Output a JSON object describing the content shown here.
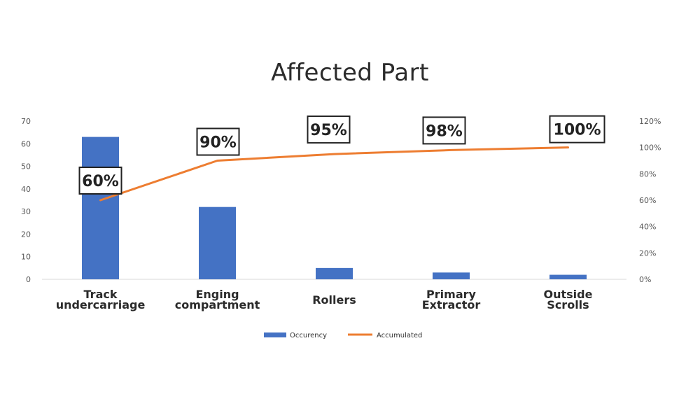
{
  "chart_data": {
    "type": "bar",
    "title": "Affected Part",
    "categories": [
      [
        "Track",
        "undercarriage"
      ],
      [
        "Enging",
        "compartment"
      ],
      [
        "Rollers"
      ],
      [
        "Primary",
        "Extractor"
      ],
      [
        "Outside",
        "Scrolls"
      ]
    ],
    "series": [
      {
        "name": "Occurency",
        "type": "bar",
        "axis": "left",
        "color": "#4472C4",
        "values": [
          63,
          32,
          5,
          3,
          2
        ]
      },
      {
        "name": "Accumulated",
        "type": "line",
        "axis": "right",
        "color": "#ED7D31",
        "values": [
          60,
          90,
          95,
          98,
          100
        ],
        "data_labels": [
          "60%",
          "90%",
          "95%",
          "98%",
          "100%"
        ]
      }
    ],
    "y_left": {
      "min": 0,
      "max": 70,
      "ticks": [
        "0",
        "10",
        "20",
        "30",
        "40",
        "50",
        "60",
        "70"
      ]
    },
    "y_right": {
      "min": 0,
      "max": 120,
      "ticks": [
        "0%",
        "20%",
        "40%",
        "60%",
        "80%",
        "100%",
        "120%"
      ]
    },
    "grid": false,
    "legend_position": "bottom"
  }
}
